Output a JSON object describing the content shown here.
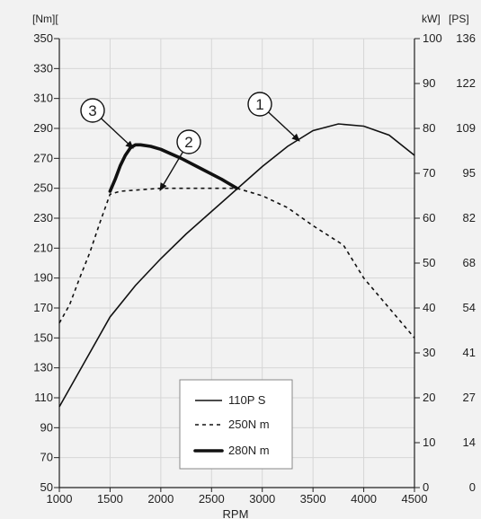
{
  "chart_data": {
    "type": "line",
    "xlabel": "RPM",
    "left_axis_label": "[Nm][",
    "right_axis_label_kw": "kW]",
    "right_axis_label_ps": "[PS]",
    "xlim": [
      1000,
      4500
    ],
    "ylim_left": [
      50,
      350
    ],
    "ylim_right_kw": [
      0,
      100
    ],
    "x_ticks": [
      1000,
      1500,
      2000,
      2500,
      3000,
      3500,
      4000,
      4500
    ],
    "y_ticks_left": [
      50,
      70,
      90,
      110,
      130,
      150,
      170,
      190,
      210,
      230,
      250,
      270,
      290,
      310,
      330,
      350
    ],
    "y_ticks_right_kw": [
      0,
      10,
      20,
      30,
      40,
      50,
      60,
      70,
      80,
      90,
      100
    ],
    "y_ticks_right_ps": [
      "0",
      "14",
      "27",
      "41",
      "54",
      "68",
      "82",
      "95",
      "109",
      "122",
      "136"
    ],
    "grid": true,
    "legend_position": "bottom-center",
    "series": [
      {
        "name": "110P S",
        "axis": "right",
        "style": "solid",
        "x": [
          1000,
          1250,
          1500,
          1750,
          2000,
          2250,
          2500,
          2750,
          3000,
          3250,
          3500,
          3750,
          4000,
          4250,
          4500
        ],
        "y": [
          18,
          28,
          38,
          45,
          51,
          56.5,
          61.5,
          66.5,
          71.5,
          76,
          79.5,
          81,
          80.5,
          78.5,
          74
        ]
      },
      {
        "name": "250N m",
        "axis": "left",
        "style": "dashed",
        "x": [
          1000,
          1100,
          1200,
          1300,
          1400,
          1500,
          1600,
          1800,
          2000,
          2200,
          2500,
          2750,
          3000,
          3250,
          3500,
          3800,
          4000,
          4250,
          4500
        ],
        "y": [
          160,
          172,
          190,
          207,
          227,
          246,
          248,
          249,
          250,
          250,
          250,
          250,
          245,
          237,
          225,
          212,
          190,
          170,
          150
        ]
      },
      {
        "name": "280N m",
        "axis": "left",
        "style": "bold",
        "x": [
          1500,
          1550,
          1600,
          1650,
          1700,
          1750,
          1800,
          1900,
          2000,
          2100,
          2200,
          2400,
          2600,
          2750
        ],
        "y": [
          248,
          256,
          265,
          272,
          277,
          279,
          279,
          278,
          276,
          273,
          270,
          263,
          256,
          250
        ]
      }
    ],
    "annotations": [
      {
        "label": "1",
        "target_series": "110P S"
      },
      {
        "label": "2",
        "target_series": "250N m"
      },
      {
        "label": "3",
        "target_series": "280N m"
      }
    ]
  }
}
